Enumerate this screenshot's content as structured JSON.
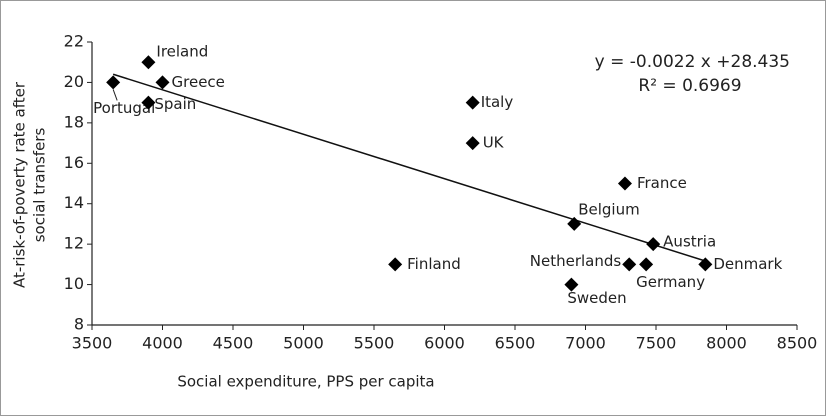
{
  "chart_data": {
    "type": "scatter",
    "xlabel": "Social expenditure, PPS per capita",
    "ylabel": [
      "At-risk-of-poverty rate after",
      "social transfers"
    ],
    "labels": [
      "Ireland",
      "Greece",
      "Portugal",
      "Spain",
      "Italy",
      "UK",
      "France",
      "Belgium",
      "Austria",
      "Denmark",
      "Germany",
      "Netherlands",
      "Sweden",
      "Finland"
    ],
    "x": [
      3900,
      4000,
      3650,
      3900,
      6200,
      6200,
      7280,
      6920,
      7480,
      7850,
      7430,
      7310,
      6900,
      5650
    ],
    "y": [
      21,
      20,
      20,
      19,
      19,
      17,
      15,
      13,
      12,
      11,
      11,
      11,
      10,
      11
    ],
    "color": "#000000",
    "xlim": [
      3500,
      8500
    ],
    "xticks": [
      3500,
      4000,
      4500,
      5000,
      5500,
      6000,
      6500,
      7000,
      7500,
      8000,
      8500
    ],
    "ylim": [
      8,
      22
    ],
    "yticks": [
      8,
      10,
      12,
      14,
      16,
      18,
      20,
      22
    ],
    "trendline": {
      "slope": -0.0022,
      "intercept": 28.435,
      "equation": "y = -0.0022  x +28.435",
      "r2": "R² = 0.6969"
    }
  }
}
